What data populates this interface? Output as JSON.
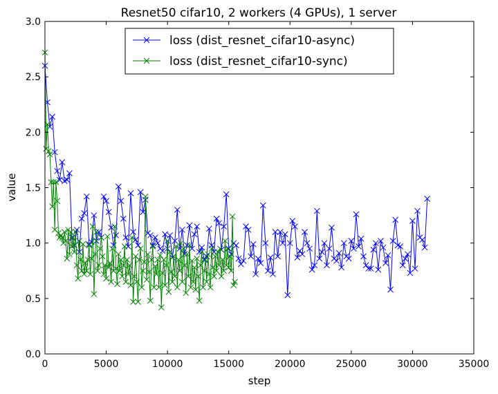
{
  "chart_data": {
    "type": "line",
    "title": "Resnet50 cifar10, 2 workers (4 GPUs), 1 server",
    "xlabel": "step",
    "ylabel": "value",
    "xlim": [
      0,
      35000
    ],
    "ylim": [
      0.0,
      3.0
    ],
    "xticks": [
      0,
      5000,
      10000,
      15000,
      20000,
      25000,
      30000,
      35000
    ],
    "xtick_labels": [
      "0",
      "5000",
      "10000",
      "15000",
      "20000",
      "25000",
      "30000",
      "35000"
    ],
    "yticks": [
      0.0,
      0.5,
      1.0,
      1.5,
      2.0,
      2.5,
      3.0
    ],
    "ytick_labels": [
      "0.0",
      "0.5",
      "1.0",
      "1.5",
      "2.0",
      "2.5",
      "3.0"
    ],
    "grid": false,
    "legend_position": "top-center",
    "marker": "x",
    "series": [
      {
        "name": "loss (dist_resnet_cifar10-async)",
        "color": "#0000ff",
        "points": [
          [
            0,
            2.6
          ],
          [
            200,
            2.27
          ],
          [
            400,
            2.05
          ],
          [
            600,
            2.14
          ],
          [
            800,
            1.82
          ],
          [
            1000,
            1.65
          ],
          [
            1200,
            1.57
          ],
          [
            1400,
            1.73
          ],
          [
            1600,
            1.56
          ],
          [
            1800,
            1.57
          ],
          [
            2000,
            1.63
          ],
          [
            2200,
            1.05
          ],
          [
            2400,
            0.98
          ],
          [
            2600,
            1.12
          ],
          [
            2800,
            0.92
          ],
          [
            3000,
            1.22
          ],
          [
            3200,
            1.27
          ],
          [
            3400,
            1.42
          ],
          [
            3600,
            0.99
          ],
          [
            3800,
            1.01
          ],
          [
            4000,
            1.25
          ],
          [
            4200,
            1.02
          ],
          [
            4400,
            1.1
          ],
          [
            4600,
            1.05
          ],
          [
            4800,
            1.42
          ],
          [
            5000,
            1.38
          ],
          [
            5200,
            1.28
          ],
          [
            5400,
            1.14
          ],
          [
            5600,
            0.98
          ],
          [
            5800,
            1.07
          ],
          [
            6000,
            1.51
          ],
          [
            6200,
            1.38
          ],
          [
            6400,
            1.22
          ],
          [
            6600,
            1.05
          ],
          [
            6800,
            0.97
          ],
          [
            7000,
            1.45
          ],
          [
            7200,
            1.1
          ],
          [
            7400,
            1.03
          ],
          [
            7600,
            0.98
          ],
          [
            7800,
            1.46
          ],
          [
            8000,
            1.28
          ],
          [
            8200,
            1.39
          ],
          [
            8400,
            1.09
          ],
          [
            8600,
            1.07
          ],
          [
            8800,
            0.98
          ],
          [
            9000,
            1.05
          ],
          [
            9200,
            1.0
          ],
          [
            9400,
            0.95
          ],
          [
            9600,
            0.93
          ],
          [
            9800,
            1.08
          ],
          [
            10000,
            0.95
          ],
          [
            10200,
            1.07
          ],
          [
            10400,
            0.87
          ],
          [
            10600,
            1.02
          ],
          [
            10800,
            1.3
          ],
          [
            11000,
            0.95
          ],
          [
            11200,
            1.12
          ],
          [
            11400,
            0.9
          ],
          [
            11600,
            0.98
          ],
          [
            11800,
            1.16
          ],
          [
            12000,
            0.95
          ],
          [
            12200,
            1.08
          ],
          [
            12400,
            1.15
          ],
          [
            12600,
            0.92
          ],
          [
            12800,
            0.96
          ],
          [
            13000,
            0.85
          ],
          [
            13200,
            0.88
          ],
          [
            13400,
            1.13
          ],
          [
            13600,
            0.98
          ],
          [
            13800,
            0.92
          ],
          [
            14000,
            1.22
          ],
          [
            14200,
            1.18
          ],
          [
            14400,
            0.94
          ],
          [
            14600,
            1.15
          ],
          [
            14800,
            1.44
          ],
          [
            15000,
            0.95
          ],
          [
            15200,
            0.9
          ],
          [
            15400,
            1.0
          ],
          [
            15600,
            0.98
          ],
          [
            15800,
            0.86
          ],
          [
            16000,
            0.81
          ],
          [
            16200,
            0.84
          ],
          [
            16400,
            1.15
          ],
          [
            16600,
            1.12
          ],
          [
            16800,
            0.88
          ],
          [
            17000,
            0.99
          ],
          [
            17200,
            0.72
          ],
          [
            17400,
            0.86
          ],
          [
            17600,
            0.82
          ],
          [
            17800,
            1.34
          ],
          [
            18000,
            1.0
          ],
          [
            18200,
            0.75
          ],
          [
            18400,
            0.87
          ],
          [
            18600,
            0.72
          ],
          [
            18800,
            1.1
          ],
          [
            19000,
            0.88
          ],
          [
            19200,
            1.1
          ],
          [
            19400,
            1.0
          ],
          [
            19600,
            1.08
          ],
          [
            19800,
            0.53
          ],
          [
            20000,
            1.0
          ],
          [
            20200,
            1.2
          ],
          [
            20400,
            1.15
          ],
          [
            20600,
            0.87
          ],
          [
            20800,
            0.93
          ],
          [
            21000,
            0.9
          ],
          [
            21200,
            1.1
          ],
          [
            21400,
            1.0
          ],
          [
            21600,
            0.95
          ],
          [
            21800,
            0.76
          ],
          [
            22000,
            0.8
          ],
          [
            22200,
            1.29
          ],
          [
            22400,
            0.86
          ],
          [
            22600,
            0.92
          ],
          [
            22800,
            1.0
          ],
          [
            23000,
            0.8
          ],
          [
            23200,
            0.95
          ],
          [
            23400,
            1.14
          ],
          [
            23600,
            0.86
          ],
          [
            23800,
            0.84
          ],
          [
            24000,
            0.91
          ],
          [
            24200,
            0.78
          ],
          [
            24400,
            1.0
          ],
          [
            24600,
            0.88
          ],
          [
            24800,
            0.86
          ],
          [
            25000,
            1.02
          ],
          [
            25200,
            0.95
          ],
          [
            25400,
            1.26
          ],
          [
            25600,
            0.97
          ],
          [
            25800,
            1.04
          ],
          [
            26000,
            0.88
          ],
          [
            26200,
            0.8
          ],
          [
            26400,
            0.77
          ],
          [
            26600,
            0.77
          ],
          [
            26800,
            0.94
          ],
          [
            27000,
            1.0
          ],
          [
            27200,
            0.76
          ],
          [
            27400,
            1.02
          ],
          [
            27600,
            0.96
          ],
          [
            27800,
            0.82
          ],
          [
            28000,
            0.89
          ],
          [
            28200,
            0.58
          ],
          [
            28400,
            1.02
          ],
          [
            28600,
            1.21
          ],
          [
            28800,
            0.98
          ],
          [
            29000,
            0.97
          ],
          [
            29200,
            0.8
          ],
          [
            29400,
            0.86
          ],
          [
            29600,
            0.9
          ],
          [
            29800,
            0.73
          ],
          [
            30000,
            1.2
          ],
          [
            30200,
            0.77
          ],
          [
            30400,
            1.29
          ],
          [
            30600,
            1.05
          ],
          [
            30800,
            1.03
          ],
          [
            31000,
            0.96
          ],
          [
            31200,
            1.4
          ]
        ]
      },
      {
        "name": "loss (dist_resnet_cifar10-sync)",
        "color": "#008000",
        "points": [
          [
            0,
            2.72
          ],
          [
            100,
            1.85
          ],
          [
            200,
            2.07
          ],
          [
            300,
            1.83
          ],
          [
            400,
            1.8
          ],
          [
            500,
            1.55
          ],
          [
            600,
            1.33
          ],
          [
            700,
            1.55
          ],
          [
            800,
            1.12
          ],
          [
            900,
            1.55
          ],
          [
            1000,
            1.38
          ],
          [
            1100,
            1.09
          ],
          [
            1200,
            1.05
          ],
          [
            1300,
            1.07
          ],
          [
            1400,
            1.05
          ],
          [
            1500,
            1.0
          ],
          [
            1600,
            1.1
          ],
          [
            1700,
            1.02
          ],
          [
            1800,
            0.86
          ],
          [
            1900,
            1.12
          ],
          [
            2000,
            0.9
          ],
          [
            2100,
            1.1
          ],
          [
            2200,
            0.97
          ],
          [
            2300,
            1.05
          ],
          [
            2400,
            0.92
          ],
          [
            2500,
            1.1
          ],
          [
            2600,
            0.8
          ],
          [
            2700,
            0.68
          ],
          [
            2800,
            1.02
          ],
          [
            2900,
            0.85
          ],
          [
            3000,
            0.75
          ],
          [
            3100,
            0.99
          ],
          [
            3200,
            0.72
          ],
          [
            3300,
            0.82
          ],
          [
            3400,
            0.75
          ],
          [
            3500,
            0.85
          ],
          [
            3600,
            0.98
          ],
          [
            3700,
            0.72
          ],
          [
            3800,
            0.86
          ],
          [
            3900,
            1.15
          ],
          [
            4000,
            0.54
          ],
          [
            4100,
            0.9
          ],
          [
            4200,
            1.1
          ],
          [
            4300,
            0.75
          ],
          [
            4400,
            0.8
          ],
          [
            4500,
            0.95
          ],
          [
            4600,
            1.05
          ],
          [
            4700,
            0.88
          ],
          [
            4800,
            0.72
          ],
          [
            4900,
            0.8
          ],
          [
            5000,
            0.68
          ],
          [
            5100,
            1.06
          ],
          [
            5200,
            0.78
          ],
          [
            5300,
            0.82
          ],
          [
            5400,
            0.65
          ],
          [
            5500,
            0.95
          ],
          [
            5600,
            0.75
          ],
          [
            5700,
            1.15
          ],
          [
            5800,
            0.77
          ],
          [
            5900,
            0.63
          ],
          [
            6000,
            0.9
          ],
          [
            6100,
            0.75
          ],
          [
            6200,
            0.85
          ],
          [
            6300,
            0.7
          ],
          [
            6400,
            0.8
          ],
          [
            6500,
            0.97
          ],
          [
            6600,
            0.65
          ],
          [
            6700,
            0.85
          ],
          [
            6800,
            0.72
          ],
          [
            6900,
            0.8
          ],
          [
            7000,
            0.62
          ],
          [
            7100,
            1.05
          ],
          [
            7200,
            0.47
          ],
          [
            7300,
            0.7
          ],
          [
            7400,
            0.88
          ],
          [
            7500,
            0.65
          ],
          [
            7600,
            0.47
          ],
          [
            7700,
            0.85
          ],
          [
            7800,
            0.95
          ],
          [
            7900,
            0.6
          ],
          [
            8000,
            0.75
          ],
          [
            8100,
            0.83
          ],
          [
            8200,
            1.42
          ],
          [
            8300,
            0.67
          ],
          [
            8400,
            0.9
          ],
          [
            8500,
            0.74
          ],
          [
            8600,
            0.48
          ],
          [
            8700,
            0.85
          ],
          [
            8800,
            0.97
          ],
          [
            8900,
            0.6
          ],
          [
            9000,
            0.79
          ],
          [
            9100,
            0.72
          ],
          [
            9200,
            0.85
          ],
          [
            9300,
            0.6
          ],
          [
            9400,
            0.89
          ],
          [
            9500,
            0.42
          ],
          [
            9600,
            0.73
          ],
          [
            9700,
            0.85
          ],
          [
            9800,
            0.62
          ],
          [
            9900,
            0.8
          ],
          [
            10000,
            1.02
          ],
          [
            10100,
            0.56
          ],
          [
            10200,
            0.92
          ],
          [
            10300,
            0.74
          ],
          [
            10400,
            0.65
          ],
          [
            10500,
            0.88
          ],
          [
            10600,
            0.7
          ],
          [
            10700,
            0.97
          ],
          [
            10800,
            0.6
          ],
          [
            10900,
            0.85
          ],
          [
            11000,
            0.75
          ],
          [
            11100,
            1.0
          ],
          [
            11200,
            0.65
          ],
          [
            11300,
            0.95
          ],
          [
            11400,
            0.8
          ],
          [
            11500,
            0.55
          ],
          [
            11600,
            0.9
          ],
          [
            11700,
            0.7
          ],
          [
            11800,
            0.98
          ],
          [
            11900,
            0.6
          ],
          [
            12000,
            0.84
          ],
          [
            12100,
            0.65
          ],
          [
            12200,
            0.78
          ],
          [
            12300,
            0.58
          ],
          [
            12400,
            0.86
          ],
          [
            12500,
            0.7
          ],
          [
            12600,
            0.48
          ],
          [
            12700,
            0.8
          ],
          [
            12800,
            0.92
          ],
          [
            12900,
            0.6
          ],
          [
            13000,
            0.75
          ],
          [
            13100,
            0.85
          ],
          [
            13200,
            0.65
          ],
          [
            13300,
            0.9
          ],
          [
            13400,
            0.72
          ],
          [
            13500,
            0.6
          ],
          [
            13600,
            0.95
          ],
          [
            13700,
            0.78
          ],
          [
            13800,
            0.7
          ],
          [
            13900,
            0.88
          ],
          [
            14000,
            0.75
          ],
          [
            14100,
            0.92
          ],
          [
            14200,
            0.8
          ],
          [
            14300,
            0.95
          ],
          [
            14400,
            0.7
          ],
          [
            14500,
            0.85
          ],
          [
            14600,
            0.75
          ],
          [
            14700,
            1.02
          ],
          [
            14800,
            0.8
          ],
          [
            14900,
            0.95
          ],
          [
            15000,
            0.78
          ],
          [
            15100,
            0.88
          ],
          [
            15200,
            0.75
          ],
          [
            15300,
            1.24
          ],
          [
            15400,
            0.62
          ],
          [
            15500,
            0.65
          ]
        ]
      }
    ]
  }
}
